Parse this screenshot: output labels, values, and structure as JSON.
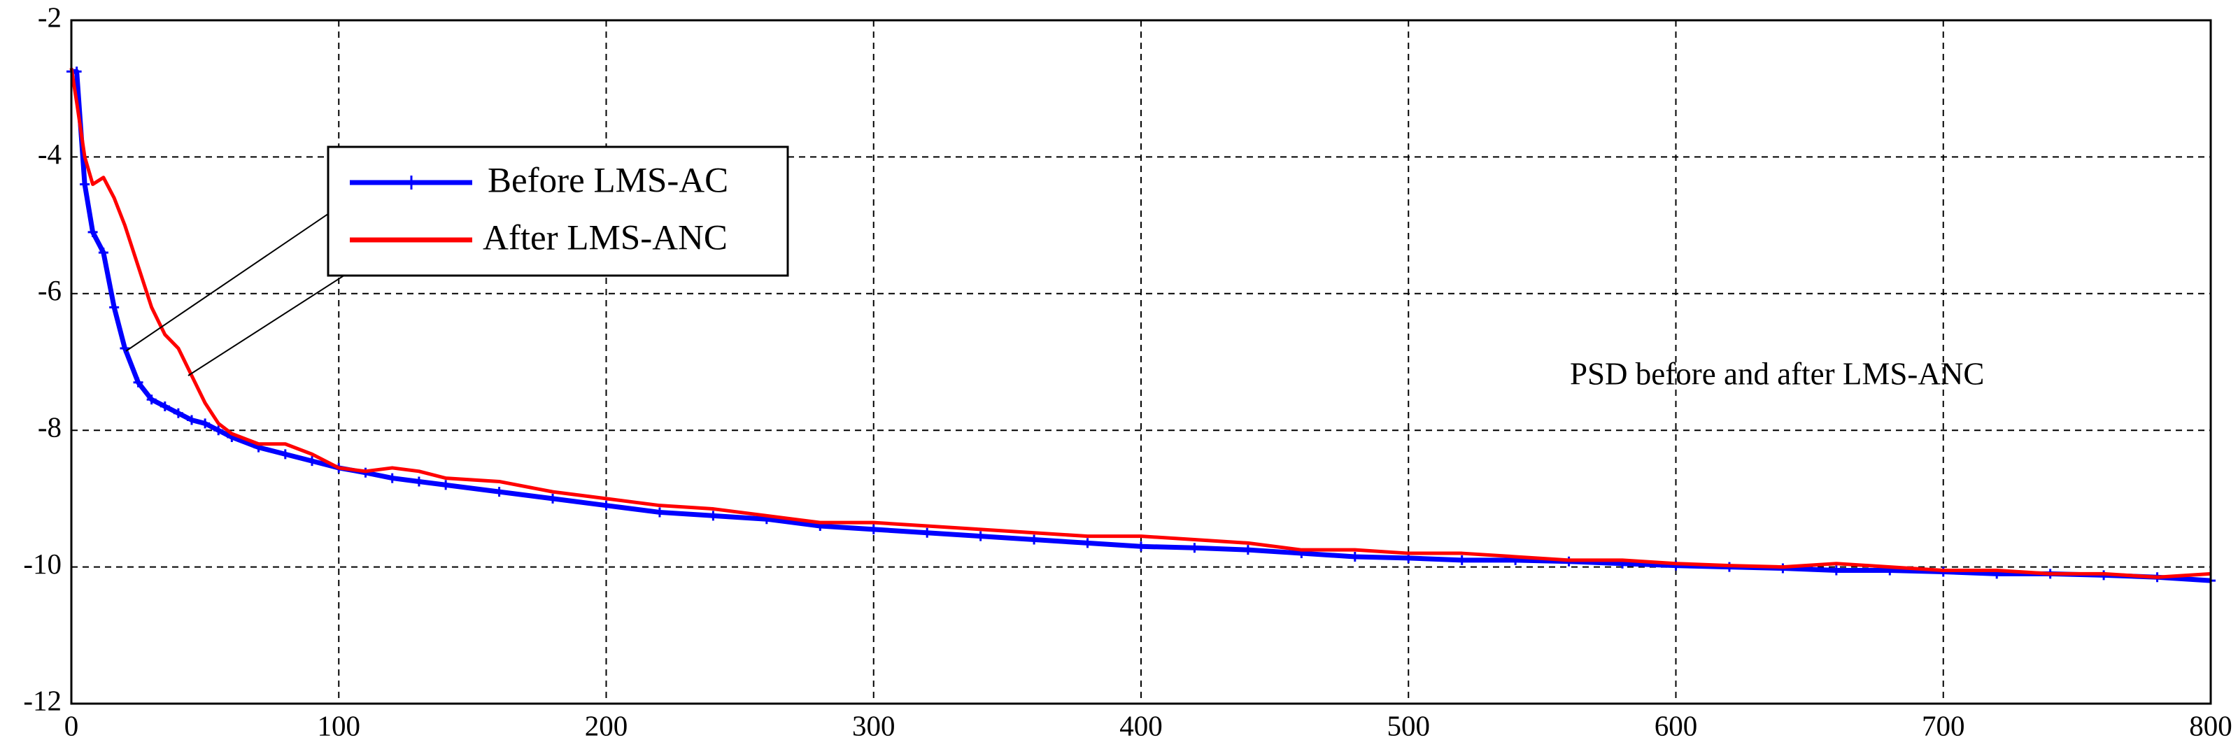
{
  "chart_data": {
    "type": "line",
    "annotation": "PSD before and after LMS-ANC",
    "x": [
      0,
      2,
      5,
      8,
      12,
      16,
      20,
      25,
      30,
      35,
      40,
      45,
      50,
      55,
      60,
      70,
      80,
      90,
      100,
      110,
      120,
      130,
      140,
      160,
      180,
      200,
      220,
      240,
      260,
      280,
      300,
      320,
      340,
      360,
      380,
      400,
      420,
      440,
      460,
      480,
      500,
      520,
      540,
      560,
      580,
      600,
      620,
      640,
      660,
      680,
      700,
      720,
      740,
      760,
      780,
      800
    ],
    "series": [
      {
        "name": "Before LMS-AC",
        "color": "#0000ff",
        "values": [
          -2.75,
          -2.75,
          -4.4,
          -5.1,
          -5.4,
          -6.2,
          -6.8,
          -7.3,
          -7.55,
          -7.65,
          -7.75,
          -7.85,
          -7.9,
          -8.0,
          -8.1,
          -8.25,
          -8.35,
          -8.45,
          -8.55,
          -8.62,
          -8.7,
          -8.75,
          -8.8,
          -8.9,
          -9.0,
          -9.1,
          -9.2,
          -9.25,
          -9.3,
          -9.4,
          -9.45,
          -9.5,
          -9.55,
          -9.6,
          -9.65,
          -9.7,
          -9.72,
          -9.75,
          -9.8,
          -9.85,
          -9.87,
          -9.9,
          -9.9,
          -9.92,
          -9.95,
          -9.98,
          -10.0,
          -10.02,
          -10.05,
          -10.05,
          -10.07,
          -10.1,
          -10.1,
          -10.12,
          -10.15,
          -10.2
        ]
      },
      {
        "name": "After LMS-ANC",
        "color": "#ff0000",
        "values": [
          -2.7,
          -3.2,
          -4.0,
          -4.4,
          -4.3,
          -4.6,
          -5.0,
          -5.6,
          -6.2,
          -6.6,
          -6.8,
          -7.2,
          -7.6,
          -7.9,
          -8.05,
          -8.2,
          -8.2,
          -8.35,
          -8.55,
          -8.6,
          -8.55,
          -8.6,
          -8.7,
          -8.75,
          -8.9,
          -9.0,
          -9.1,
          -9.15,
          -9.25,
          -9.35,
          -9.35,
          -9.4,
          -9.45,
          -9.5,
          -9.55,
          -9.55,
          -9.6,
          -9.65,
          -9.75,
          -9.75,
          -9.8,
          -9.8,
          -9.85,
          -9.9,
          -9.9,
          -9.95,
          -9.98,
          -10.0,
          -9.95,
          -10.0,
          -10.05,
          -10.05,
          -10.1,
          -10.1,
          -10.15,
          -10.1
        ]
      }
    ],
    "xlim": [
      0,
      800
    ],
    "xticks": [
      0,
      100,
      200,
      300,
      400,
      500,
      600,
      700,
      800
    ],
    "ylim": [
      -12,
      -2
    ],
    "yticks": [
      -12,
      -10,
      -8,
      -6,
      -4,
      -2
    ],
    "grid": true
  }
}
